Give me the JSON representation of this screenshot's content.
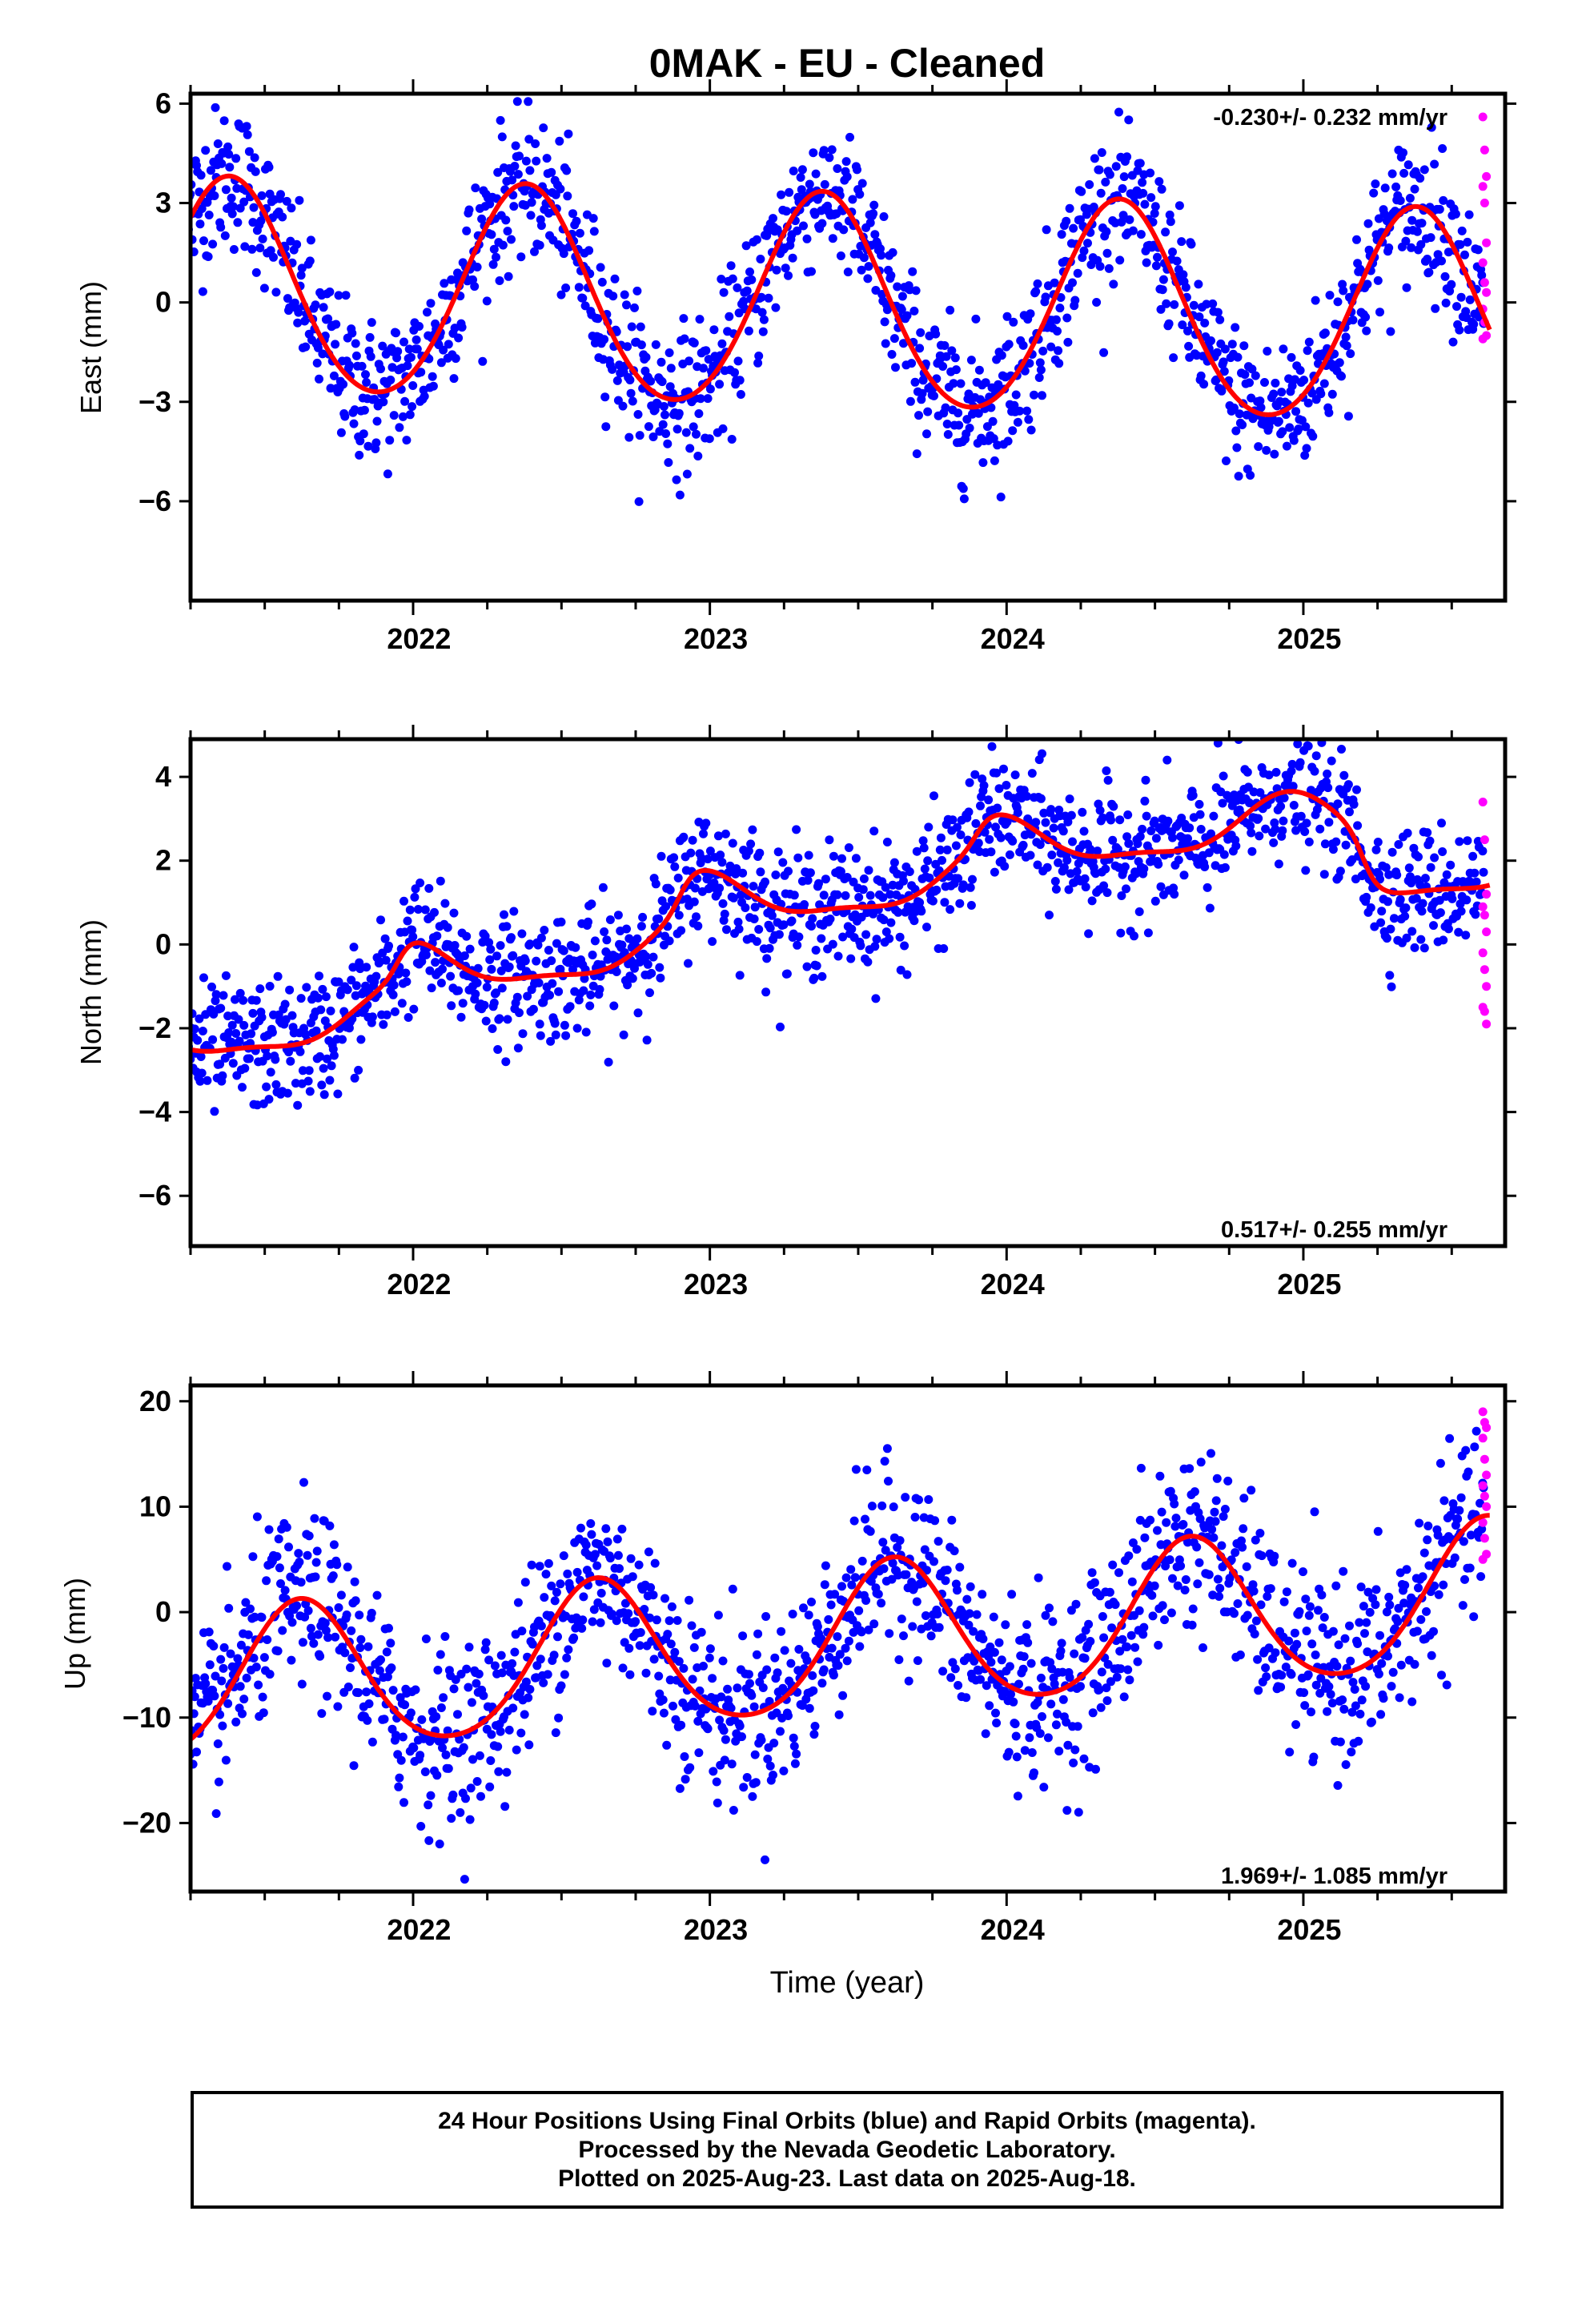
{
  "title": "0MAK  - EU - Cleaned",
  "x_axis_label": "Time (year)",
  "footer": {
    "line1": "24 Hour Positions Using Final Orbits (blue) and Rapid Orbits (magenta).",
    "line2": "Processed by the Nevada Geodetic Laboratory.",
    "line3": "Plotted on 2025-Aug-23. Last data on 2025-Aug-18."
  },
  "colors": {
    "final_orbits": "#0000ff",
    "rapid_orbits": "#ff00ff",
    "model_fit": "#ff0000"
  },
  "chart_data": [
    {
      "type": "scatter",
      "ylabel": "East (mm)",
      "rate_label": "-0.230+/- 0.232 mm/yr",
      "rate_position": "top-right",
      "xlim": [
        2021.25,
        2025.68
      ],
      "ylim": [
        -9,
        6.3
      ],
      "x_ticks": [
        2022,
        2023,
        2024,
        2025
      ],
      "y_ticks": [
        -6,
        -3,
        0,
        3,
        6
      ],
      "model": {
        "offset": -0.1,
        "rate": -0.23,
        "amplitude": 3.2,
        "phase_peak": 0.38,
        "semi_amp": 0.25,
        "start": 2021.18,
        "end": 2025.63
      },
      "noise_sd": 1.1,
      "rapid_values": [
        5.6,
        4.6,
        3.8,
        3.5,
        3.0,
        1.8,
        1.2,
        0.6,
        0.3,
        -0.2,
        -0.6,
        -1.0,
        -1.1
      ],
      "series": [
        {
          "name": "Final Orbits",
          "color": "#0000ff"
        },
        {
          "name": "Rapid Orbits",
          "color": "#ff00ff"
        },
        {
          "name": "Model fit",
          "color": "#ff0000"
        }
      ]
    },
    {
      "type": "scatter",
      "ylabel": "North (mm)",
      "rate_label": "0.517+/- 0.255 mm/yr",
      "rate_position": "bottom-right",
      "xlim": [
        2021.25,
        2025.68
      ],
      "ylim": [
        -7.2,
        4.9
      ],
      "x_ticks": [
        2022,
        2023,
        2024,
        2025
      ],
      "y_ticks": [
        -6,
        -4,
        -2,
        0,
        2,
        4
      ],
      "model": {
        "offset": -0.2,
        "rate": 0.517,
        "amplitude": 0.6,
        "phase_peak": 0.95,
        "semi_amp": 0.2,
        "start": 2021.18,
        "end": 2025.63
      },
      "steps": [
        [
          2021.95,
          1.2
        ],
        [
          2022.9,
          1.1
        ],
        [
          2023.9,
          0.8
        ],
        [
          2025.2,
          -1.4
        ]
      ],
      "noise_sd": 0.75,
      "rapid_values": [
        3.4,
        2.5,
        1.2,
        0.9,
        0.7,
        0.3,
        -0.2,
        -0.6,
        -1.0,
        -1.5,
        -1.6,
        -1.9
      ],
      "series": [
        {
          "name": "Final Orbits",
          "color": "#0000ff"
        },
        {
          "name": "Rapid Orbits",
          "color": "#ff00ff"
        },
        {
          "name": "Model fit",
          "color": "#ff0000"
        }
      ]
    },
    {
      "type": "scatter",
      "ylabel": "Up (mm)",
      "rate_label": "1.969+/- 1.085 mm/yr",
      "rate_position": "bottom-right",
      "xlim": [
        2021.25,
        2025.68
      ],
      "ylim": [
        -26.5,
        21.5
      ],
      "x_ticks": [
        2022,
        2023,
        2024,
        2025
      ],
      "y_ticks": [
        -20,
        -10,
        0,
        10,
        20
      ],
      "model": {
        "offset": -3.0,
        "rate": 1.969,
        "amplitude": 7.0,
        "phase_peak": 0.62,
        "semi_amp": 0.8,
        "start": 2021.18,
        "end": 2025.63
      },
      "noise_sd": 4.2,
      "rapid_values": [
        19.0,
        18.0,
        17.5,
        16.5,
        14.5,
        13.0,
        12.0,
        11.0,
        10.0,
        8.5,
        7.0,
        5.5,
        5.0
      ],
      "series": [
        {
          "name": "Final Orbits",
          "color": "#0000ff"
        },
        {
          "name": "Rapid Orbits",
          "color": "#ff00ff"
        },
        {
          "name": "Model fit",
          "color": "#ff0000"
        }
      ]
    }
  ]
}
